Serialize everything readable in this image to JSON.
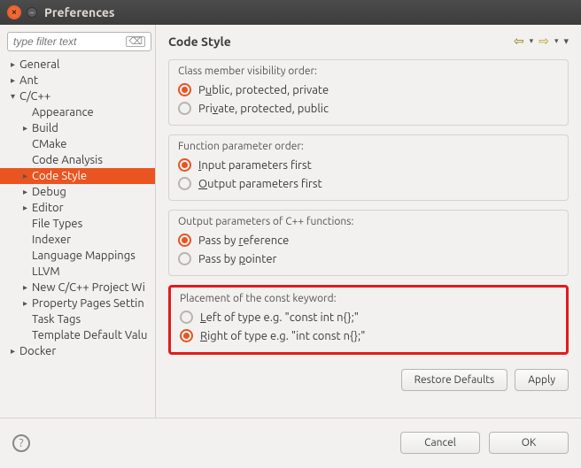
{
  "window": {
    "title": "Preferences"
  },
  "sidebar": {
    "filter_placeholder": "type filter text",
    "items": [
      {
        "label": "General",
        "level": 1,
        "arrow": "▸"
      },
      {
        "label": "Ant",
        "level": 1,
        "arrow": "▸"
      },
      {
        "label": "C/C++",
        "level": 1,
        "arrow": "▾"
      },
      {
        "label": "Appearance",
        "level": 2,
        "arrow": ""
      },
      {
        "label": "Build",
        "level": 2,
        "arrow": "▸"
      },
      {
        "label": "CMake",
        "level": 2,
        "arrow": ""
      },
      {
        "label": "Code Analysis",
        "level": 2,
        "arrow": ""
      },
      {
        "label": "Code Style",
        "level": 2,
        "arrow": "▸",
        "selected": true
      },
      {
        "label": "Debug",
        "level": 2,
        "arrow": "▸"
      },
      {
        "label": "Editor",
        "level": 2,
        "arrow": "▸"
      },
      {
        "label": "File Types",
        "level": 2,
        "arrow": ""
      },
      {
        "label": "Indexer",
        "level": 2,
        "arrow": ""
      },
      {
        "label": "Language Mappings",
        "level": 2,
        "arrow": ""
      },
      {
        "label": "LLVM",
        "level": 2,
        "arrow": ""
      },
      {
        "label": "New C/C++ Project Wi",
        "level": 2,
        "arrow": "▸"
      },
      {
        "label": "Property Pages Settin",
        "level": 2,
        "arrow": "▸"
      },
      {
        "label": "Task Tags",
        "level": 2,
        "arrow": ""
      },
      {
        "label": "Template Default Valu",
        "level": 2,
        "arrow": ""
      },
      {
        "label": "Docker",
        "level": 1,
        "arrow": "▸"
      }
    ]
  },
  "page": {
    "title": "Code Style",
    "groups": [
      {
        "label": "Class member visibility order:",
        "options": [
          {
            "html": "P<u>u</u>blic, protected, private",
            "checked": true
          },
          {
            "html": "Pri<u>v</u>ate, protected, public",
            "checked": false
          }
        ]
      },
      {
        "label": "Function parameter order:",
        "options": [
          {
            "html": "<u>I</u>nput parameters first",
            "checked": true
          },
          {
            "html": "<u>O</u>utput parameters first",
            "checked": false
          }
        ]
      },
      {
        "label": "Output parameters of C++ functions:",
        "options": [
          {
            "html": "Pass by <u>r</u>eference",
            "checked": true
          },
          {
            "html": "Pass by <u>p</u>ointer",
            "checked": false
          }
        ]
      },
      {
        "label": "Placement of the const keyword:",
        "highlighted": true,
        "options": [
          {
            "html": "<u>L</u>eft of type e.g. \"const int n{};\"",
            "checked": false
          },
          {
            "html": "<u>R</u>ight of type e.g. \"int const n{};\"",
            "checked": true
          }
        ]
      }
    ],
    "buttons": {
      "restore": "Restore Defaults",
      "apply": "Apply"
    }
  },
  "footer": {
    "cancel": "Cancel",
    "ok": "OK"
  }
}
